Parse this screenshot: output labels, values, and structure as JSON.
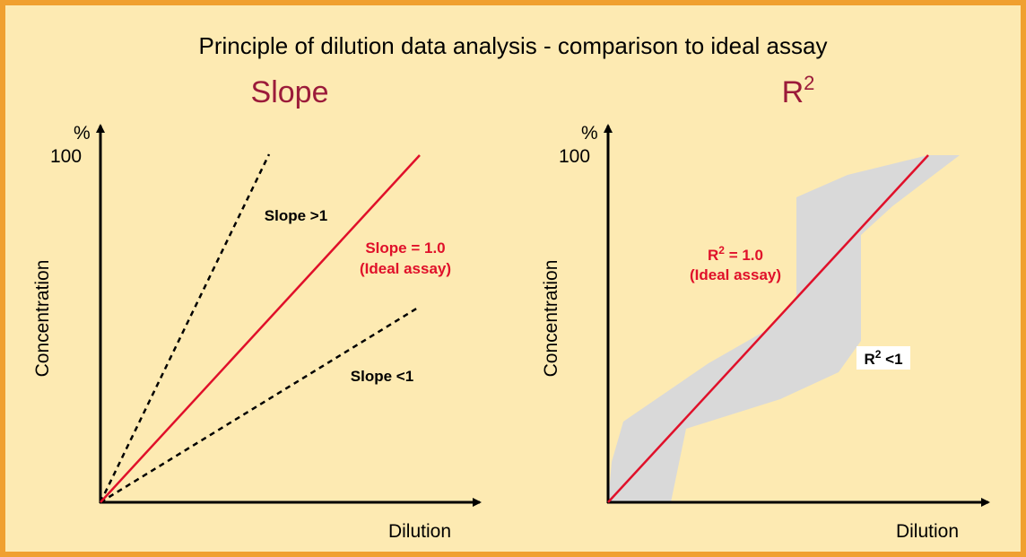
{
  "title": "Principle of dilution data analysis - comparison to ideal assay",
  "panels": [
    {
      "title": {
        "base": "Slope"
      },
      "y_unit": "%",
      "y_max_label": "100",
      "y_label": "Concentration",
      "x_label": "Dilution",
      "annotations": {
        "steep": "Slope >1",
        "ideal": "Slope = 1.0",
        "ideal_note": "(Ideal assay)",
        "shallow": "Slope <1"
      }
    },
    {
      "title": {
        "base": "R",
        "sup": "2"
      },
      "y_unit": "%",
      "y_max_label": "100",
      "y_label": "Concentration",
      "x_label": "Dilution",
      "annotations": {
        "ideal": {
          "base": "R",
          "sup": "2",
          "rest": " = 1.0"
        },
        "ideal_note": "(Ideal assay)",
        "poor": {
          "base": "R",
          "sup": "2",
          "rest": " <1"
        }
      }
    }
  ]
}
